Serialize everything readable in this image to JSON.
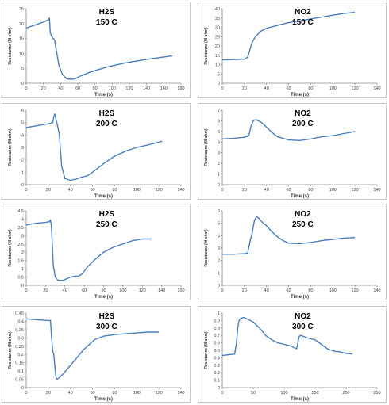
{
  "chart_data": [
    {
      "type": "line",
      "title": "H2S",
      "subtitle": "150 C",
      "xlabel": "Time (s)",
      "ylabel": "Resistance (M ohm)",
      "xlim": [
        0,
        180
      ],
      "ylim": [
        0,
        25
      ],
      "xticks": [
        0,
        20,
        40,
        60,
        80,
        100,
        120,
        140,
        160,
        180
      ],
      "yticks": [
        0,
        5,
        10,
        15,
        20,
        25
      ],
      "x": [
        0,
        10,
        20,
        26,
        27,
        28,
        30,
        33,
        35,
        38,
        42,
        47,
        52,
        57,
        62,
        75,
        95,
        115,
        140,
        170
      ],
      "y": [
        18.5,
        19.5,
        20.5,
        21.3,
        21.8,
        17.0,
        15.5,
        14.5,
        11.0,
        6.0,
        3.0,
        1.5,
        1.3,
        1.5,
        2.3,
        3.8,
        5.5,
        6.8,
        8.0,
        9.2
      ]
    },
    {
      "type": "line",
      "title": "NO2",
      "subtitle": "150 C",
      "xlabel": "Time (s)",
      "ylabel": "Resistance (M ohm)",
      "xlim": [
        0,
        140
      ],
      "ylim": [
        0,
        40
      ],
      "xticks": [
        0,
        20,
        40,
        60,
        80,
        100,
        120,
        140
      ],
      "yticks": [
        0,
        5,
        10,
        15,
        20,
        25,
        30,
        35,
        40
      ],
      "x": [
        0,
        10,
        20,
        23,
        25,
        27,
        30,
        35,
        40,
        50,
        60,
        70,
        80,
        90,
        100,
        110,
        120
      ],
      "y": [
        12.5,
        12.7,
        12.9,
        14.0,
        18.0,
        22.0,
        25.0,
        28.0,
        29.5,
        31.0,
        32.5,
        33.5,
        34.5,
        35.5,
        36.5,
        37.5,
        38.0
      ]
    },
    {
      "type": "line",
      "title": "H2S",
      "subtitle": "200 C",
      "xlabel": "Time (s)",
      "ylabel": "Resistance (M ohm)",
      "xlim": [
        0,
        140
      ],
      "ylim": [
        0,
        6
      ],
      "xticks": [
        0,
        20,
        40,
        60,
        80,
        100,
        120,
        140
      ],
      "yticks": [
        0,
        1,
        2,
        3,
        4,
        5,
        6
      ],
      "x": [
        0,
        10,
        20,
        24,
        25,
        26,
        27,
        28,
        30,
        32,
        35,
        40,
        45,
        50,
        55,
        60,
        70,
        80,
        90,
        100,
        110,
        123
      ],
      "y": [
        4.6,
        4.75,
        4.9,
        5.0,
        5.5,
        5.7,
        5.2,
        4.9,
        4.0,
        1.5,
        0.5,
        0.35,
        0.45,
        0.6,
        0.7,
        1.0,
        1.7,
        2.3,
        2.7,
        3.0,
        3.2,
        3.5
      ]
    },
    {
      "type": "line",
      "title": "NO2",
      "subtitle": "200 C",
      "xlabel": "Time (s)",
      "ylabel": "Resistance (M ohm)",
      "xlim": [
        0,
        140
      ],
      "ylim": [
        0,
        7
      ],
      "xticks": [
        0,
        20,
        40,
        60,
        80,
        100,
        120,
        140
      ],
      "yticks": [
        0,
        1,
        2,
        3,
        4,
        5,
        6,
        7
      ],
      "x": [
        0,
        10,
        20,
        24,
        26,
        28,
        30,
        33,
        36,
        40,
        45,
        50,
        60,
        70,
        80,
        90,
        100,
        110,
        120
      ],
      "y": [
        4.3,
        4.35,
        4.45,
        4.6,
        5.5,
        6.0,
        6.1,
        6.0,
        5.8,
        5.4,
        4.9,
        4.5,
        4.2,
        4.15,
        4.3,
        4.5,
        4.6,
        4.8,
        5.0
      ]
    },
    {
      "type": "line",
      "title": "H2S",
      "subtitle": "250 C",
      "xlabel": "Time (s)",
      "ylabel": "Resistance (M ohm)",
      "xlim": [
        0,
        160
      ],
      "ylim": [
        0,
        4.5
      ],
      "xticks": [
        0,
        20,
        40,
        60,
        80,
        100,
        120,
        140,
        160
      ],
      "yticks": [
        0,
        0.5,
        1,
        1.5,
        2,
        2.5,
        3,
        3.5,
        4,
        4.5
      ],
      "x": [
        0,
        10,
        20,
        24,
        25,
        26,
        27,
        28,
        30,
        33,
        38,
        42,
        46,
        50,
        54,
        58,
        63,
        70,
        80,
        90,
        100,
        110,
        120,
        130
      ],
      "y": [
        3.65,
        3.75,
        3.8,
        3.85,
        3.95,
        3.6,
        2.5,
        1.2,
        0.5,
        0.3,
        0.3,
        0.4,
        0.5,
        0.55,
        0.55,
        0.7,
        1.1,
        1.5,
        2.0,
        2.3,
        2.5,
        2.7,
        2.8,
        2.8
      ]
    },
    {
      "type": "line",
      "title": "NO2",
      "subtitle": "250 C",
      "xlabel": "Time (s)",
      "ylabel": "Resistance (M ohm)",
      "xlim": [
        0,
        140
      ],
      "ylim": [
        0,
        6
      ],
      "xticks": [
        0,
        20,
        40,
        60,
        80,
        100,
        120,
        140
      ],
      "yticks": [
        0,
        1,
        2,
        3,
        4,
        5,
        6
      ],
      "x": [
        0,
        10,
        20,
        23,
        25,
        27,
        29,
        31,
        33,
        36,
        40,
        45,
        50,
        55,
        60,
        70,
        80,
        90,
        100,
        110,
        120
      ],
      "y": [
        2.5,
        2.5,
        2.55,
        2.6,
        3.5,
        4.2,
        5.2,
        5.55,
        5.4,
        5.1,
        4.8,
        4.3,
        3.9,
        3.6,
        3.4,
        3.35,
        3.45,
        3.6,
        3.7,
        3.8,
        3.85
      ]
    },
    {
      "type": "line",
      "title": "H2S",
      "subtitle": "300 C",
      "xlabel": "Time (s)",
      "ylabel": "Resistance (M ohm)",
      "xlim": [
        0,
        140
      ],
      "ylim": [
        0,
        0.45
      ],
      "xticks": [
        0,
        20,
        40,
        60,
        80,
        100,
        120,
        140
      ],
      "yticks": [
        0,
        0.05,
        0.1,
        0.15,
        0.2,
        0.25,
        0.3,
        0.35,
        0.4,
        0.45
      ],
      "x": [
        0,
        10,
        20,
        22,
        23,
        24,
        25,
        26,
        27,
        28,
        30,
        33,
        37,
        42,
        47,
        52,
        57,
        62,
        70,
        80,
        90,
        100,
        110,
        120
      ],
      "y": [
        0.415,
        0.41,
        0.405,
        0.405,
        0.3,
        0.22,
        0.2,
        0.12,
        0.06,
        0.05,
        0.06,
        0.08,
        0.11,
        0.15,
        0.19,
        0.23,
        0.26,
        0.29,
        0.31,
        0.32,
        0.325,
        0.33,
        0.335,
        0.335
      ]
    },
    {
      "type": "line",
      "title": "NO2",
      "subtitle": "300 C",
      "xlabel": "Time (s)",
      "ylabel": "Resistance (M ohm)",
      "xlim": [
        0,
        250
      ],
      "ylim": [
        0,
        1
      ],
      "xticks": [
        0,
        50,
        100,
        150,
        200,
        250
      ],
      "yticks": [
        0,
        0.1,
        0.2,
        0.3,
        0.4,
        0.5,
        0.6,
        0.7,
        0.8,
        0.9,
        1
      ],
      "x": [
        0,
        10,
        20,
        23,
        25,
        27,
        30,
        35,
        40,
        50,
        60,
        70,
        80,
        90,
        100,
        110,
        120,
        122,
        124,
        126,
        130,
        140,
        150,
        160,
        170,
        180,
        190,
        200,
        210
      ],
      "y": [
        0.43,
        0.44,
        0.45,
        0.6,
        0.8,
        0.9,
        0.93,
        0.94,
        0.92,
        0.88,
        0.8,
        0.7,
        0.64,
        0.6,
        0.58,
        0.56,
        0.52,
        0.6,
        0.68,
        0.7,
        0.69,
        0.66,
        0.64,
        0.58,
        0.52,
        0.49,
        0.48,
        0.46,
        0.45
      ]
    }
  ]
}
